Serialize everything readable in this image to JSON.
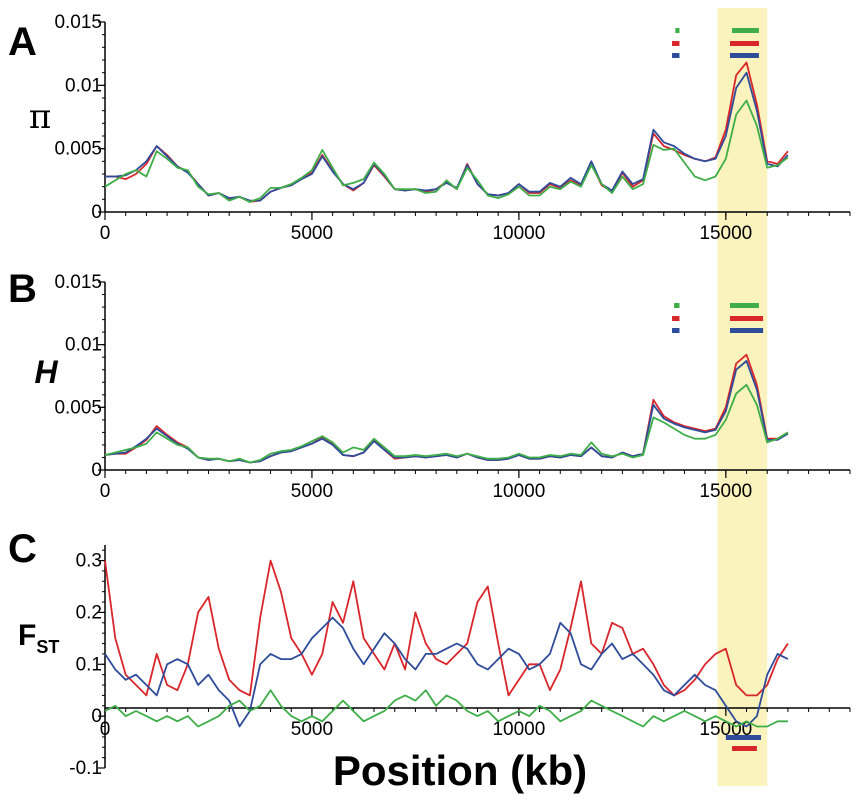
{
  "chart_data": [
    {
      "type": "line",
      "panel_letter": "A",
      "ylabel": "π",
      "ylim": [
        0,
        0.015
      ],
      "yticks": [
        0,
        0.005,
        0.01,
        0.015
      ],
      "ytick_labels": [
        "0",
        "0.005",
        "0.01",
        "0.015"
      ],
      "xlim": [
        0,
        18000
      ],
      "xticks": [
        0,
        5000,
        10000,
        15000
      ],
      "xtick_labels": [
        "0",
        "5000",
        "10000",
        "15000"
      ],
      "highlight_region": [
        14800,
        16000
      ],
      "highlight_color": "#fbf3bd",
      "x": [
        0,
        250,
        500,
        750,
        1000,
        1250,
        1500,
        1750,
        2000,
        2250,
        2500,
        2750,
        3000,
        3250,
        3500,
        3750,
        4000,
        4250,
        4500,
        4750,
        5000,
        5250,
        5500,
        5750,
        6000,
        6250,
        6500,
        6750,
        7000,
        7250,
        7500,
        7750,
        8000,
        8250,
        8500,
        8750,
        9000,
        9250,
        9500,
        9750,
        10000,
        10250,
        10500,
        10750,
        11000,
        11250,
        11500,
        11750,
        12000,
        12250,
        12500,
        12750,
        13000,
        13250,
        13500,
        13750,
        14000,
        14250,
        14500,
        14750,
        15000,
        15250,
        15500,
        15750,
        16000,
        16250,
        16500
      ],
      "series": [
        {
          "color": "#d9262b",
          "values": [
            0.0028,
            0.0028,
            0.0026,
            0.003,
            0.0038,
            0.0052,
            0.0045,
            0.0036,
            0.0032,
            0.0022,
            0.0013,
            0.0015,
            0.001,
            0.0012,
            0.0008,
            0.0009,
            0.0016,
            0.0019,
            0.0022,
            0.0026,
            0.0031,
            0.0045,
            0.0033,
            0.0022,
            0.0017,
            0.0023,
            0.0037,
            0.0028,
            0.0018,
            0.0017,
            0.0018,
            0.0016,
            0.0018,
            0.0024,
            0.0018,
            0.0038,
            0.0022,
            0.0014,
            0.0013,
            0.0015,
            0.0022,
            0.0015,
            0.0015,
            0.0022,
            0.0019,
            0.0025,
            0.0021,
            0.0038,
            0.0021,
            0.0016,
            0.0031,
            0.002,
            0.0025,
            0.0062,
            0.0052,
            0.0049,
            0.0045,
            0.0042,
            0.004,
            0.0043,
            0.0065,
            0.0108,
            0.0118,
            0.0085,
            0.004,
            0.0038,
            0.0048
          ]
        },
        {
          "color": "#2e4c9a",
          "values": [
            0.0028,
            0.0028,
            0.0029,
            0.0033,
            0.004,
            0.0052,
            0.0044,
            0.0036,
            0.0031,
            0.0022,
            0.0013,
            0.0015,
            0.0011,
            0.0012,
            0.0009,
            0.0009,
            0.0016,
            0.0019,
            0.0021,
            0.0026,
            0.003,
            0.0044,
            0.0032,
            0.0022,
            0.0018,
            0.0023,
            0.0038,
            0.0029,
            0.0018,
            0.0017,
            0.0018,
            0.0017,
            0.0018,
            0.0023,
            0.0019,
            0.0037,
            0.0022,
            0.0014,
            0.0013,
            0.0015,
            0.0022,
            0.0016,
            0.0016,
            0.0023,
            0.002,
            0.0027,
            0.0022,
            0.004,
            0.0022,
            0.0017,
            0.0032,
            0.0022,
            0.0026,
            0.0065,
            0.0055,
            0.0052,
            0.0046,
            0.0042,
            0.004,
            0.0042,
            0.006,
            0.0098,
            0.011,
            0.008,
            0.0038,
            0.0036,
            0.0045
          ]
        },
        {
          "color": "#3fae49",
          "values": [
            0.002,
            0.0025,
            0.003,
            0.0033,
            0.0028,
            0.0048,
            0.0042,
            0.0035,
            0.0033,
            0.002,
            0.0014,
            0.0015,
            0.0009,
            0.0012,
            0.0008,
            0.0011,
            0.0019,
            0.0019,
            0.0022,
            0.0027,
            0.0033,
            0.0049,
            0.0035,
            0.0021,
            0.0023,
            0.0026,
            0.0039,
            0.003,
            0.0018,
            0.0018,
            0.0018,
            0.0015,
            0.0016,
            0.0025,
            0.0018,
            0.0035,
            0.0025,
            0.0013,
            0.0011,
            0.0014,
            0.002,
            0.0013,
            0.0013,
            0.002,
            0.0018,
            0.0024,
            0.002,
            0.0037,
            0.0022,
            0.0015,
            0.0028,
            0.0018,
            0.0022,
            0.0053,
            0.0049,
            0.005,
            0.0039,
            0.0028,
            0.0025,
            0.0028,
            0.0042,
            0.0077,
            0.0088,
            0.0068,
            0.0035,
            0.0037,
            0.0043
          ]
        }
      ],
      "segment_markers": [
        {
          "color": "#3fae49",
          "ranges": [
            [
              13780,
              13880
            ],
            [
              15150,
              15800
            ]
          ]
        },
        {
          "color": "#d9262b",
          "ranges": [
            [
              13700,
              13880
            ],
            [
              15100,
              15800
            ]
          ]
        },
        {
          "color": "#2e4c9a",
          "ranges": [
            [
              13700,
              13880
            ],
            [
              15100,
              15800
            ]
          ]
        }
      ]
    },
    {
      "type": "line",
      "panel_letter": "B",
      "ylabel": "H",
      "ylim": [
        0,
        0.015
      ],
      "yticks": [
        0,
        0.005,
        0.01,
        0.015
      ],
      "ytick_labels": [
        "0",
        "0.005",
        "0.01",
        "0.015"
      ],
      "xlim": [
        0,
        18000
      ],
      "xticks": [
        0,
        5000,
        10000,
        15000
      ],
      "xtick_labels": [
        "0",
        "5000",
        "10000",
        "15000"
      ],
      "highlight_region": [
        14800,
        16000
      ],
      "highlight_color": "#fbf3bd",
      "x": [
        0,
        250,
        500,
        750,
        1000,
        1250,
        1500,
        1750,
        2000,
        2250,
        2500,
        2750,
        3000,
        3250,
        3500,
        3750,
        4000,
        4250,
        4500,
        4750,
        5000,
        5250,
        5500,
        5750,
        6000,
        6250,
        6500,
        6750,
        7000,
        7250,
        7500,
        7750,
        8000,
        8250,
        8500,
        8750,
        9000,
        9250,
        9500,
        9750,
        10000,
        10250,
        10500,
        10750,
        11000,
        11250,
        11500,
        11750,
        12000,
        12250,
        12500,
        12750,
        13000,
        13250,
        13500,
        13750,
        14000,
        14250,
        14500,
        14750,
        15000,
        15250,
        15500,
        15750,
        16000,
        16250,
        16500
      ],
      "series": [
        {
          "color": "#d9262b",
          "values": [
            0.0012,
            0.0013,
            0.0013,
            0.0018,
            0.0024,
            0.0035,
            0.0028,
            0.0022,
            0.0018,
            0.001,
            0.0008,
            0.0009,
            0.0007,
            0.0008,
            0.0006,
            0.0007,
            0.0011,
            0.0014,
            0.0015,
            0.0018,
            0.0021,
            0.0026,
            0.0021,
            0.0012,
            0.0011,
            0.0014,
            0.0024,
            0.0016,
            0.0009,
            0.001,
            0.0011,
            0.001,
            0.0011,
            0.0012,
            0.001,
            0.0013,
            0.001,
            0.0008,
            0.0008,
            0.0009,
            0.0012,
            0.0009,
            0.0009,
            0.0011,
            0.001,
            0.0012,
            0.0011,
            0.0018,
            0.0011,
            0.001,
            0.0014,
            0.0011,
            0.0013,
            0.0056,
            0.0043,
            0.0038,
            0.0035,
            0.0033,
            0.0031,
            0.0033,
            0.005,
            0.0085,
            0.0092,
            0.0068,
            0.0025,
            0.0025,
            0.003
          ]
        },
        {
          "color": "#2e4c9a",
          "values": [
            0.0012,
            0.0013,
            0.0014,
            0.0019,
            0.0025,
            0.0033,
            0.0027,
            0.0021,
            0.0017,
            0.001,
            0.0008,
            0.0009,
            0.0007,
            0.0008,
            0.0006,
            0.0007,
            0.0011,
            0.0014,
            0.0015,
            0.0018,
            0.0021,
            0.0025,
            0.002,
            0.0012,
            0.0011,
            0.0014,
            0.0023,
            0.0016,
            0.001,
            0.001,
            0.0011,
            0.001,
            0.0011,
            0.0012,
            0.001,
            0.0013,
            0.001,
            0.0008,
            0.0008,
            0.0009,
            0.0012,
            0.0009,
            0.0009,
            0.0011,
            0.001,
            0.0012,
            0.0011,
            0.0018,
            0.0011,
            0.001,
            0.0014,
            0.0011,
            0.0013,
            0.0052,
            0.0041,
            0.0037,
            0.0034,
            0.0032,
            0.003,
            0.0032,
            0.0047,
            0.008,
            0.0087,
            0.0064,
            0.0024,
            0.0024,
            0.0029
          ]
        },
        {
          "color": "#3fae49",
          "values": [
            0.0012,
            0.0014,
            0.0016,
            0.0018,
            0.0021,
            0.003,
            0.0025,
            0.002,
            0.0018,
            0.001,
            0.0009,
            0.0009,
            0.0007,
            0.0009,
            0.0006,
            0.0008,
            0.0013,
            0.0015,
            0.0016,
            0.0019,
            0.0023,
            0.0027,
            0.0022,
            0.0014,
            0.0018,
            0.0016,
            0.0025,
            0.0018,
            0.0011,
            0.0011,
            0.0012,
            0.0011,
            0.0012,
            0.0013,
            0.0011,
            0.0013,
            0.0011,
            0.0009,
            0.0009,
            0.001,
            0.0013,
            0.001,
            0.001,
            0.0012,
            0.0011,
            0.0013,
            0.0012,
            0.0022,
            0.0013,
            0.0011,
            0.0013,
            0.001,
            0.0012,
            0.0042,
            0.0038,
            0.0033,
            0.0028,
            0.0025,
            0.0025,
            0.0028,
            0.004,
            0.0061,
            0.0068,
            0.0052,
            0.0022,
            0.0025,
            0.003
          ]
        }
      ],
      "segment_markers": [
        {
          "color": "#3fae49",
          "ranges": [
            [
              13750,
              13880
            ],
            [
              15100,
              15800
            ]
          ]
        },
        {
          "color": "#d9262b",
          "ranges": [
            [
              13700,
              13880
            ],
            [
              15100,
              15900
            ]
          ]
        },
        {
          "color": "#2e4c9a",
          "ranges": [
            [
              13700,
              13880
            ],
            [
              15100,
              15900
            ]
          ]
        }
      ]
    },
    {
      "type": "line",
      "panel_letter": "C",
      "ylabel": "F",
      "ylabel_sub": "ST",
      "ylim": [
        -0.1,
        0.33
      ],
      "yticks": [
        -0.1,
        0,
        0.1,
        0.2,
        0.3
      ],
      "ytick_labels": [
        "-0.1",
        "0",
        "0.1",
        "0.2",
        "0.3"
      ],
      "xlim": [
        0,
        18000
      ],
      "xticks": [
        0,
        5000,
        10000,
        15000
      ],
      "xtick_labels": [
        "0",
        "5000",
        "10000",
        "15000"
      ],
      "highlight_region": [
        14800,
        16000
      ],
      "highlight_color": "#fbf3bd",
      "x": [
        0,
        250,
        500,
        750,
        1000,
        1250,
        1500,
        1750,
        2000,
        2250,
        2500,
        2750,
        3000,
        3250,
        3500,
        3750,
        4000,
        4250,
        4500,
        4750,
        5000,
        5250,
        5500,
        5750,
        6000,
        6250,
        6500,
        6750,
        7000,
        7250,
        7500,
        7750,
        8000,
        8250,
        8500,
        8750,
        9000,
        9250,
        9500,
        9750,
        10000,
        10250,
        10500,
        10750,
        11000,
        11250,
        11500,
        11750,
        12000,
        12250,
        12500,
        12750,
        13000,
        13250,
        13500,
        13750,
        14000,
        14250,
        14500,
        14750,
        15000,
        15250,
        15500,
        15750,
        16000,
        16250,
        16500
      ],
      "series": [
        {
          "color": "#d9262b",
          "values": [
            0.3,
            0.15,
            0.08,
            0.06,
            0.04,
            0.12,
            0.06,
            0.05,
            0.1,
            0.2,
            0.23,
            0.13,
            0.07,
            0.05,
            0.04,
            0.19,
            0.3,
            0.24,
            0.15,
            0.12,
            0.08,
            0.12,
            0.22,
            0.18,
            0.26,
            0.15,
            0.12,
            0.09,
            0.14,
            0.09,
            0.2,
            0.14,
            0.11,
            0.1,
            0.12,
            0.14,
            0.22,
            0.25,
            0.14,
            0.04,
            0.07,
            0.1,
            0.1,
            0.05,
            0.09,
            0.17,
            0.26,
            0.14,
            0.12,
            0.18,
            0.17,
            0.12,
            0.13,
            0.1,
            0.06,
            0.04,
            0.05,
            0.07,
            0.1,
            0.12,
            0.13,
            0.06,
            0.04,
            0.04,
            0.06,
            0.11,
            0.14
          ]
        },
        {
          "color": "#2e4c9a",
          "values": [
            0.12,
            0.09,
            0.07,
            0.08,
            0.06,
            0.04,
            0.1,
            0.11,
            0.1,
            0.06,
            0.08,
            0.05,
            0.03,
            -0.02,
            0.01,
            0.1,
            0.12,
            0.11,
            0.11,
            0.12,
            0.15,
            0.17,
            0.19,
            0.17,
            0.13,
            0.1,
            0.13,
            0.16,
            0.14,
            0.11,
            0.09,
            0.12,
            0.12,
            0.13,
            0.14,
            0.13,
            0.1,
            0.09,
            0.11,
            0.13,
            0.12,
            0.09,
            0.1,
            0.12,
            0.18,
            0.16,
            0.1,
            0.09,
            0.12,
            0.14,
            0.11,
            0.12,
            0.1,
            0.08,
            0.05,
            0.04,
            0.06,
            0.08,
            0.06,
            0.05,
            0.02,
            -0.01,
            -0.02,
            0.0,
            0.08,
            0.12,
            0.11
          ]
        },
        {
          "color": "#3fae49",
          "values": [
            0.01,
            0.02,
            0.0,
            0.01,
            0.0,
            -0.01,
            0.0,
            -0.01,
            0.0,
            -0.02,
            -0.01,
            0.0,
            0.02,
            0.03,
            0.01,
            0.02,
            0.05,
            0.02,
            0.0,
            -0.01,
            0.0,
            -0.01,
            0.01,
            0.03,
            0.01,
            -0.01,
            0.0,
            0.01,
            0.03,
            0.04,
            0.03,
            0.05,
            0.02,
            0.04,
            0.03,
            0.01,
            0.0,
            0.01,
            -0.01,
            0.0,
            0.01,
            0.0,
            0.02,
            0.01,
            -0.01,
            0.0,
            0.01,
            0.03,
            0.02,
            0.01,
            0.0,
            -0.01,
            -0.02,
            0.0,
            -0.01,
            0.0,
            0.01,
            0.0,
            -0.01,
            0.0,
            -0.01,
            -0.02,
            -0.01,
            -0.02,
            -0.02,
            -0.01,
            -0.01
          ]
        }
      ],
      "segment_markers": [
        {
          "color": "#2e4c9a",
          "ranges": [
            [
              15000,
              15850
            ]
          ]
        },
        {
          "color": "#d9262b",
          "ranges": [
            [
              15150,
              15750
            ]
          ]
        }
      ]
    }
  ],
  "xlabel": "Position (kb)"
}
